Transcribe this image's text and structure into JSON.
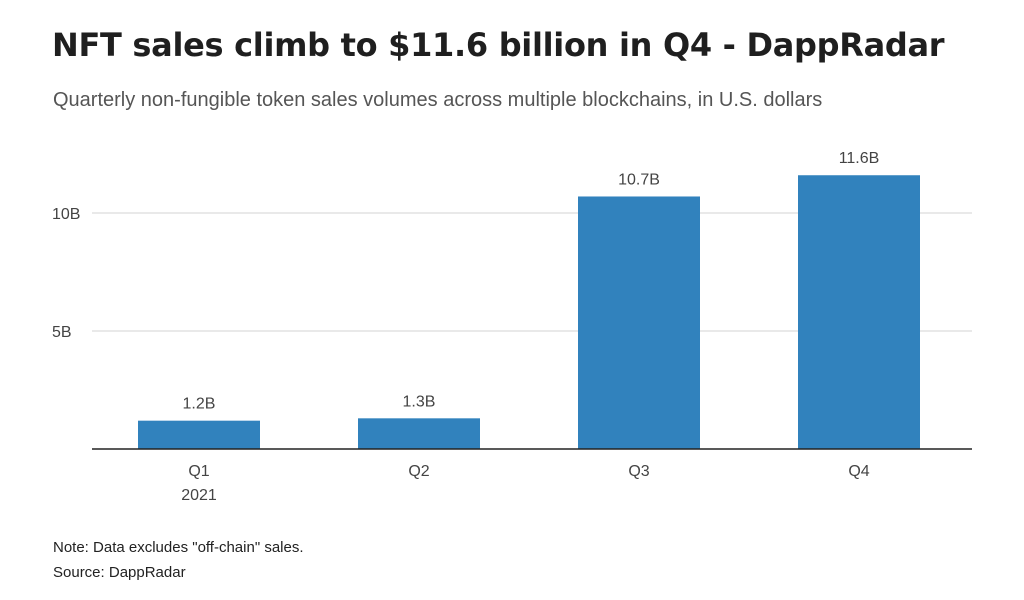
{
  "header": {
    "title": "NFT sales climb to $11.6 billion in Q4 - DappRadar",
    "subtitle": "Quarterly non-fungible token sales volumes across multiple blockchains, in U.S. dollars"
  },
  "footer": {
    "note": "Note: Data excludes \"off-chain\" sales.",
    "source": "Source: DappRadar"
  },
  "colors": {
    "bar": "#3182bd",
    "grid": "#d3d3d3",
    "axis": "#222222"
  },
  "chart_data": {
    "type": "bar",
    "title": "NFT sales climb to $11.6 billion in Q4 - DappRadar",
    "subtitle": "Quarterly non-fungible token sales volumes across multiple blockchains, in U.S. dollars",
    "categories": [
      "Q1",
      "Q2",
      "Q3",
      "Q4"
    ],
    "category_sublabels": [
      "2021",
      "",
      "",
      ""
    ],
    "values": [
      1.2,
      1.3,
      10.7,
      11.6
    ],
    "value_labels": [
      "1.2B",
      "1.3B",
      "10.7B",
      "11.6B"
    ],
    "unit": "billion U.S. dollars",
    "ylim": [
      0,
      12.5
    ],
    "yticks": [
      5,
      10
    ],
    "ytick_labels": [
      "5B",
      "10B"
    ],
    "xlabel": "",
    "ylabel": "",
    "grid": true,
    "legend": "none"
  }
}
